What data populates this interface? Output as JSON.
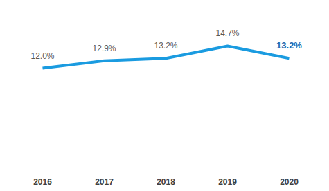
{
  "chart_data": {
    "type": "line",
    "categories": [
      "2016",
      "2017",
      "2018",
      "2019",
      "2020"
    ],
    "values": [
      12.0,
      12.9,
      13.2,
      14.7,
      13.2
    ],
    "value_labels": [
      "12.0%",
      "12.9%",
      "13.2%",
      "14.7%",
      "13.2%"
    ],
    "color": "#1a9be0",
    "ylim": [
      0,
      16
    ],
    "grid": false,
    "data_labels": true,
    "tick_labels": "x"
  }
}
